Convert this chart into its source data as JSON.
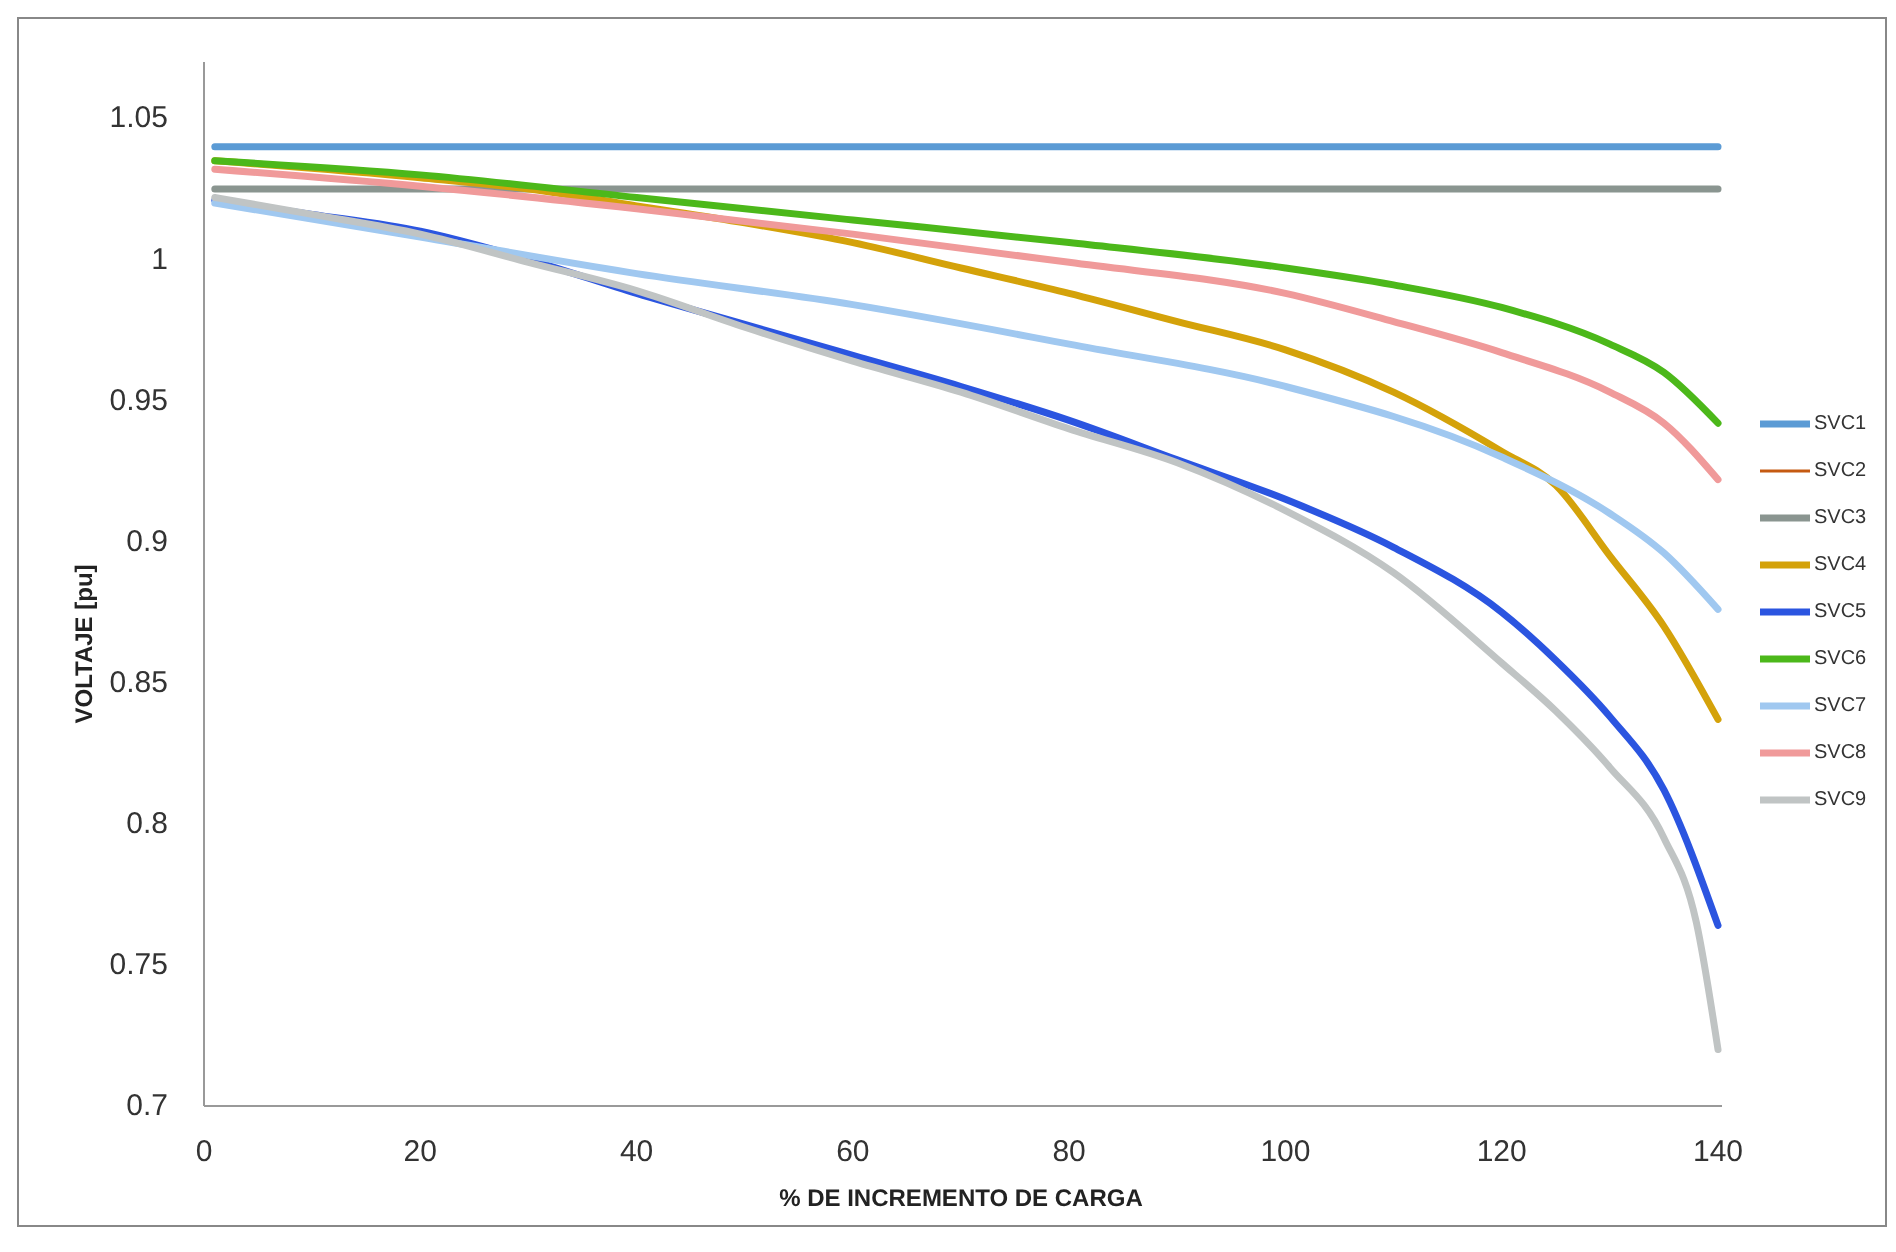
{
  "chart_data": {
    "type": "line",
    "xlabel": "% DE INCREMENTO DE CARGA",
    "ylabel": "VOLTAJE [pu]",
    "xlim": [
      0,
      140
    ],
    "ylim": [
      0.7,
      1.07
    ],
    "xticks": [
      0,
      20,
      40,
      60,
      80,
      100,
      120,
      140
    ],
    "yticks": [
      0.7,
      0.75,
      0.8,
      0.85,
      0.9,
      0.95,
      1,
      1.05
    ],
    "grid": false,
    "legend": "right",
    "series": [
      {
        "name": "SVC1",
        "color": "#5b9bd5",
        "x": [
          1,
          140
        ],
        "values": [
          1.04,
          1.04
        ]
      },
      {
        "name": "SVC2",
        "color": "#c55a11"
      },
      {
        "name": "SVC3",
        "color": "#8a9590",
        "x": [
          1,
          140
        ],
        "values": [
          1.025,
          1.025
        ]
      },
      {
        "name": "SVC4",
        "color": "#d4a20a",
        "x": [
          1,
          20,
          30,
          40,
          50,
          60,
          70,
          80,
          90,
          100,
          110,
          120,
          125,
          130,
          135,
          140
        ],
        "values": [
          1.035,
          1.029,
          1.025,
          1.019,
          1.013,
          1.006,
          0.997,
          0.988,
          0.978,
          0.968,
          0.953,
          0.932,
          0.92,
          0.895,
          0.87,
          0.837
        ]
      },
      {
        "name": "SVC5",
        "color": "#2b55e0",
        "x": [
          1,
          10,
          20,
          30,
          40,
          50,
          60,
          70,
          80,
          90,
          100,
          110,
          120,
          125,
          130,
          135,
          140
        ],
        "values": [
          1.021,
          1.016,
          1.01,
          1.0,
          0.988,
          0.977,
          0.966,
          0.955,
          0.943,
          0.929,
          0.915,
          0.898,
          0.875,
          0.858,
          0.838,
          0.812,
          0.764
        ]
      },
      {
        "name": "SVC6",
        "color": "#4cb81a",
        "x": [
          1,
          20,
          40,
          60,
          80,
          100,
          110,
          120,
          130,
          135,
          140
        ],
        "values": [
          1.035,
          1.03,
          1.022,
          1.014,
          1.006,
          0.997,
          0.991,
          0.983,
          0.97,
          0.96,
          0.942
        ]
      },
      {
        "name": "SVC7",
        "color": "#a0c8f0",
        "x": [
          1,
          20,
          40,
          60,
          80,
          100,
          120,
          130,
          135,
          140
        ],
        "values": [
          1.02,
          1.008,
          0.995,
          0.984,
          0.97,
          0.955,
          0.93,
          0.91,
          0.896,
          0.876
        ]
      },
      {
        "name": "SVC8",
        "color": "#f09a9a",
        "x": [
          1,
          20,
          40,
          60,
          80,
          100,
          110,
          120,
          130,
          135,
          140
        ],
        "values": [
          1.032,
          1.026,
          1.018,
          1.009,
          0.999,
          0.988,
          0.978,
          0.967,
          0.953,
          0.942,
          0.922
        ]
      },
      {
        "name": "SVC9",
        "color": "#c0c4c4",
        "x": [
          1,
          10,
          20,
          30,
          40,
          50,
          60,
          70,
          80,
          90,
          100,
          110,
          120,
          125,
          130,
          135,
          138,
          140
        ],
        "values": [
          1.022,
          1.016,
          1.009,
          0.999,
          0.989,
          0.976,
          0.964,
          0.953,
          0.94,
          0.928,
          0.911,
          0.889,
          0.857,
          0.84,
          0.82,
          0.795,
          0.765,
          0.72
        ]
      }
    ]
  }
}
